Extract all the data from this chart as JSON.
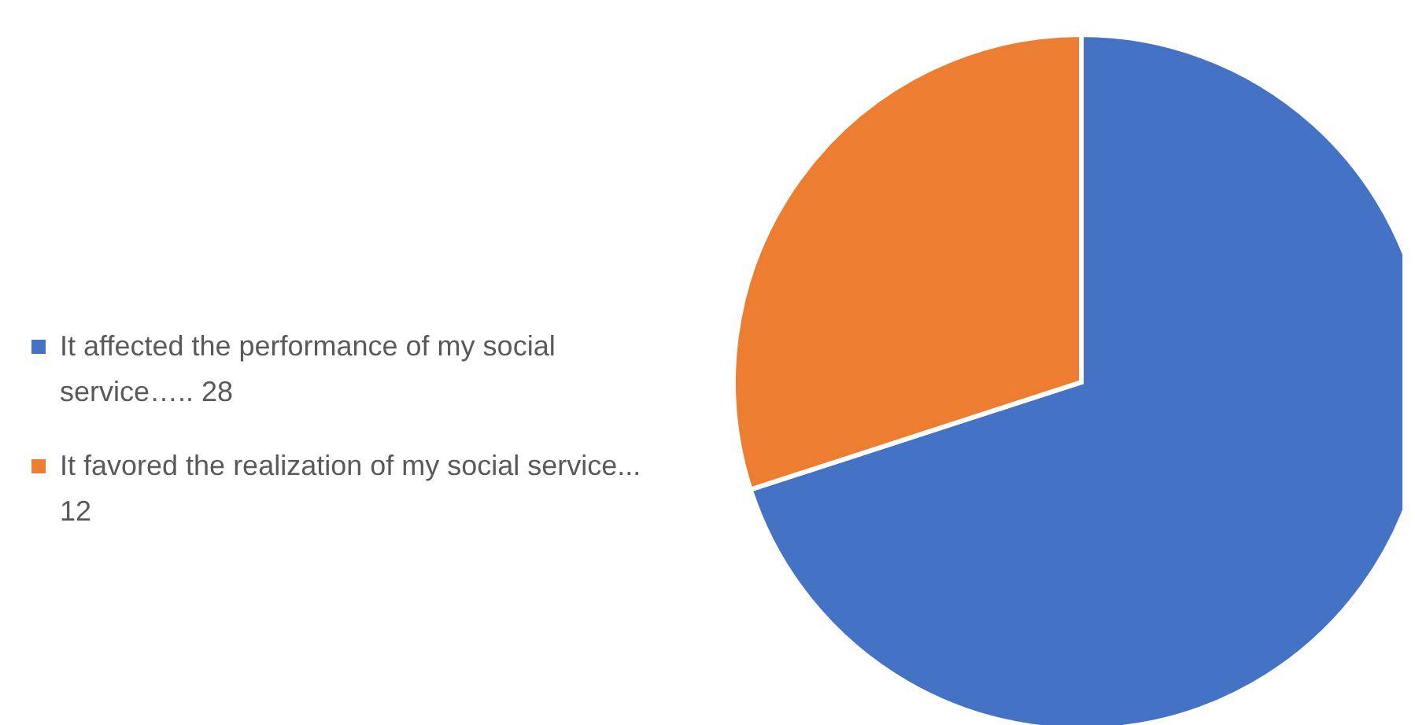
{
  "chart_data": {
    "type": "pie",
    "categories": [
      "It affected the performance of my social service….. 28",
      "It favored the realization of my social service... 12"
    ],
    "values": [
      28,
      12
    ],
    "colors": [
      "#4472c4",
      "#ed7d31"
    ],
    "legend": "left"
  }
}
